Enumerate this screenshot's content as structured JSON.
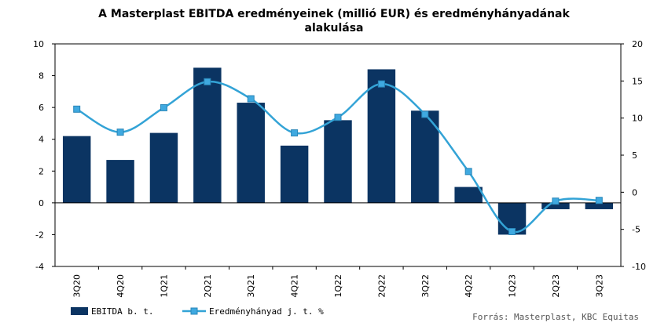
{
  "chart_data": {
    "type": "bar+line",
    "title_lines": [
      "A Masterplast EBITDA eredményeinek (millió EUR) és eredményhányadának",
      "alakulása"
    ],
    "categories": [
      "3Q20",
      "4Q20",
      "1Q21",
      "2Q21",
      "3Q21",
      "4Q21",
      "1Q22",
      "2Q22",
      "3Q22",
      "4Q22",
      "1Q23",
      "2Q23",
      "3Q23"
    ],
    "series": [
      {
        "name": "EBITDA b. t.",
        "type": "bar",
        "axis": "left",
        "values": [
          4.2,
          2.7,
          4.4,
          8.5,
          6.3,
          3.6,
          5.2,
          8.4,
          5.8,
          1.0,
          -2.0,
          -0.4,
          -0.4
        ]
      },
      {
        "name": "Eredményhányad j. t. %",
        "type": "line",
        "axis": "right",
        "smooth": true,
        "values": [
          11.2,
          8.1,
          11.4,
          14.9,
          12.6,
          8.0,
          10.1,
          14.6,
          10.5,
          2.8,
          -5.3,
          -1.2,
          -1.1
        ]
      }
    ],
    "left_axis": {
      "min": -4,
      "max": 10,
      "step": 2,
      "ticks": [
        "-4",
        "-2",
        "0",
        "2",
        "4",
        "6",
        "8",
        "10"
      ]
    },
    "right_axis": {
      "min": -10,
      "max": 20,
      "step": 5,
      "ticks": [
        "-10",
        "-5",
        "0",
        "5",
        "10",
        "15",
        "20"
      ]
    },
    "colors": {
      "bar": "#0b3462",
      "line": "#33a3d6",
      "marker": "#3fa9e0",
      "marker_edge": "#2a86b8"
    },
    "legend_position": "bottom-left",
    "source": "Forrás: Masterplast, KBC Equitas"
  }
}
